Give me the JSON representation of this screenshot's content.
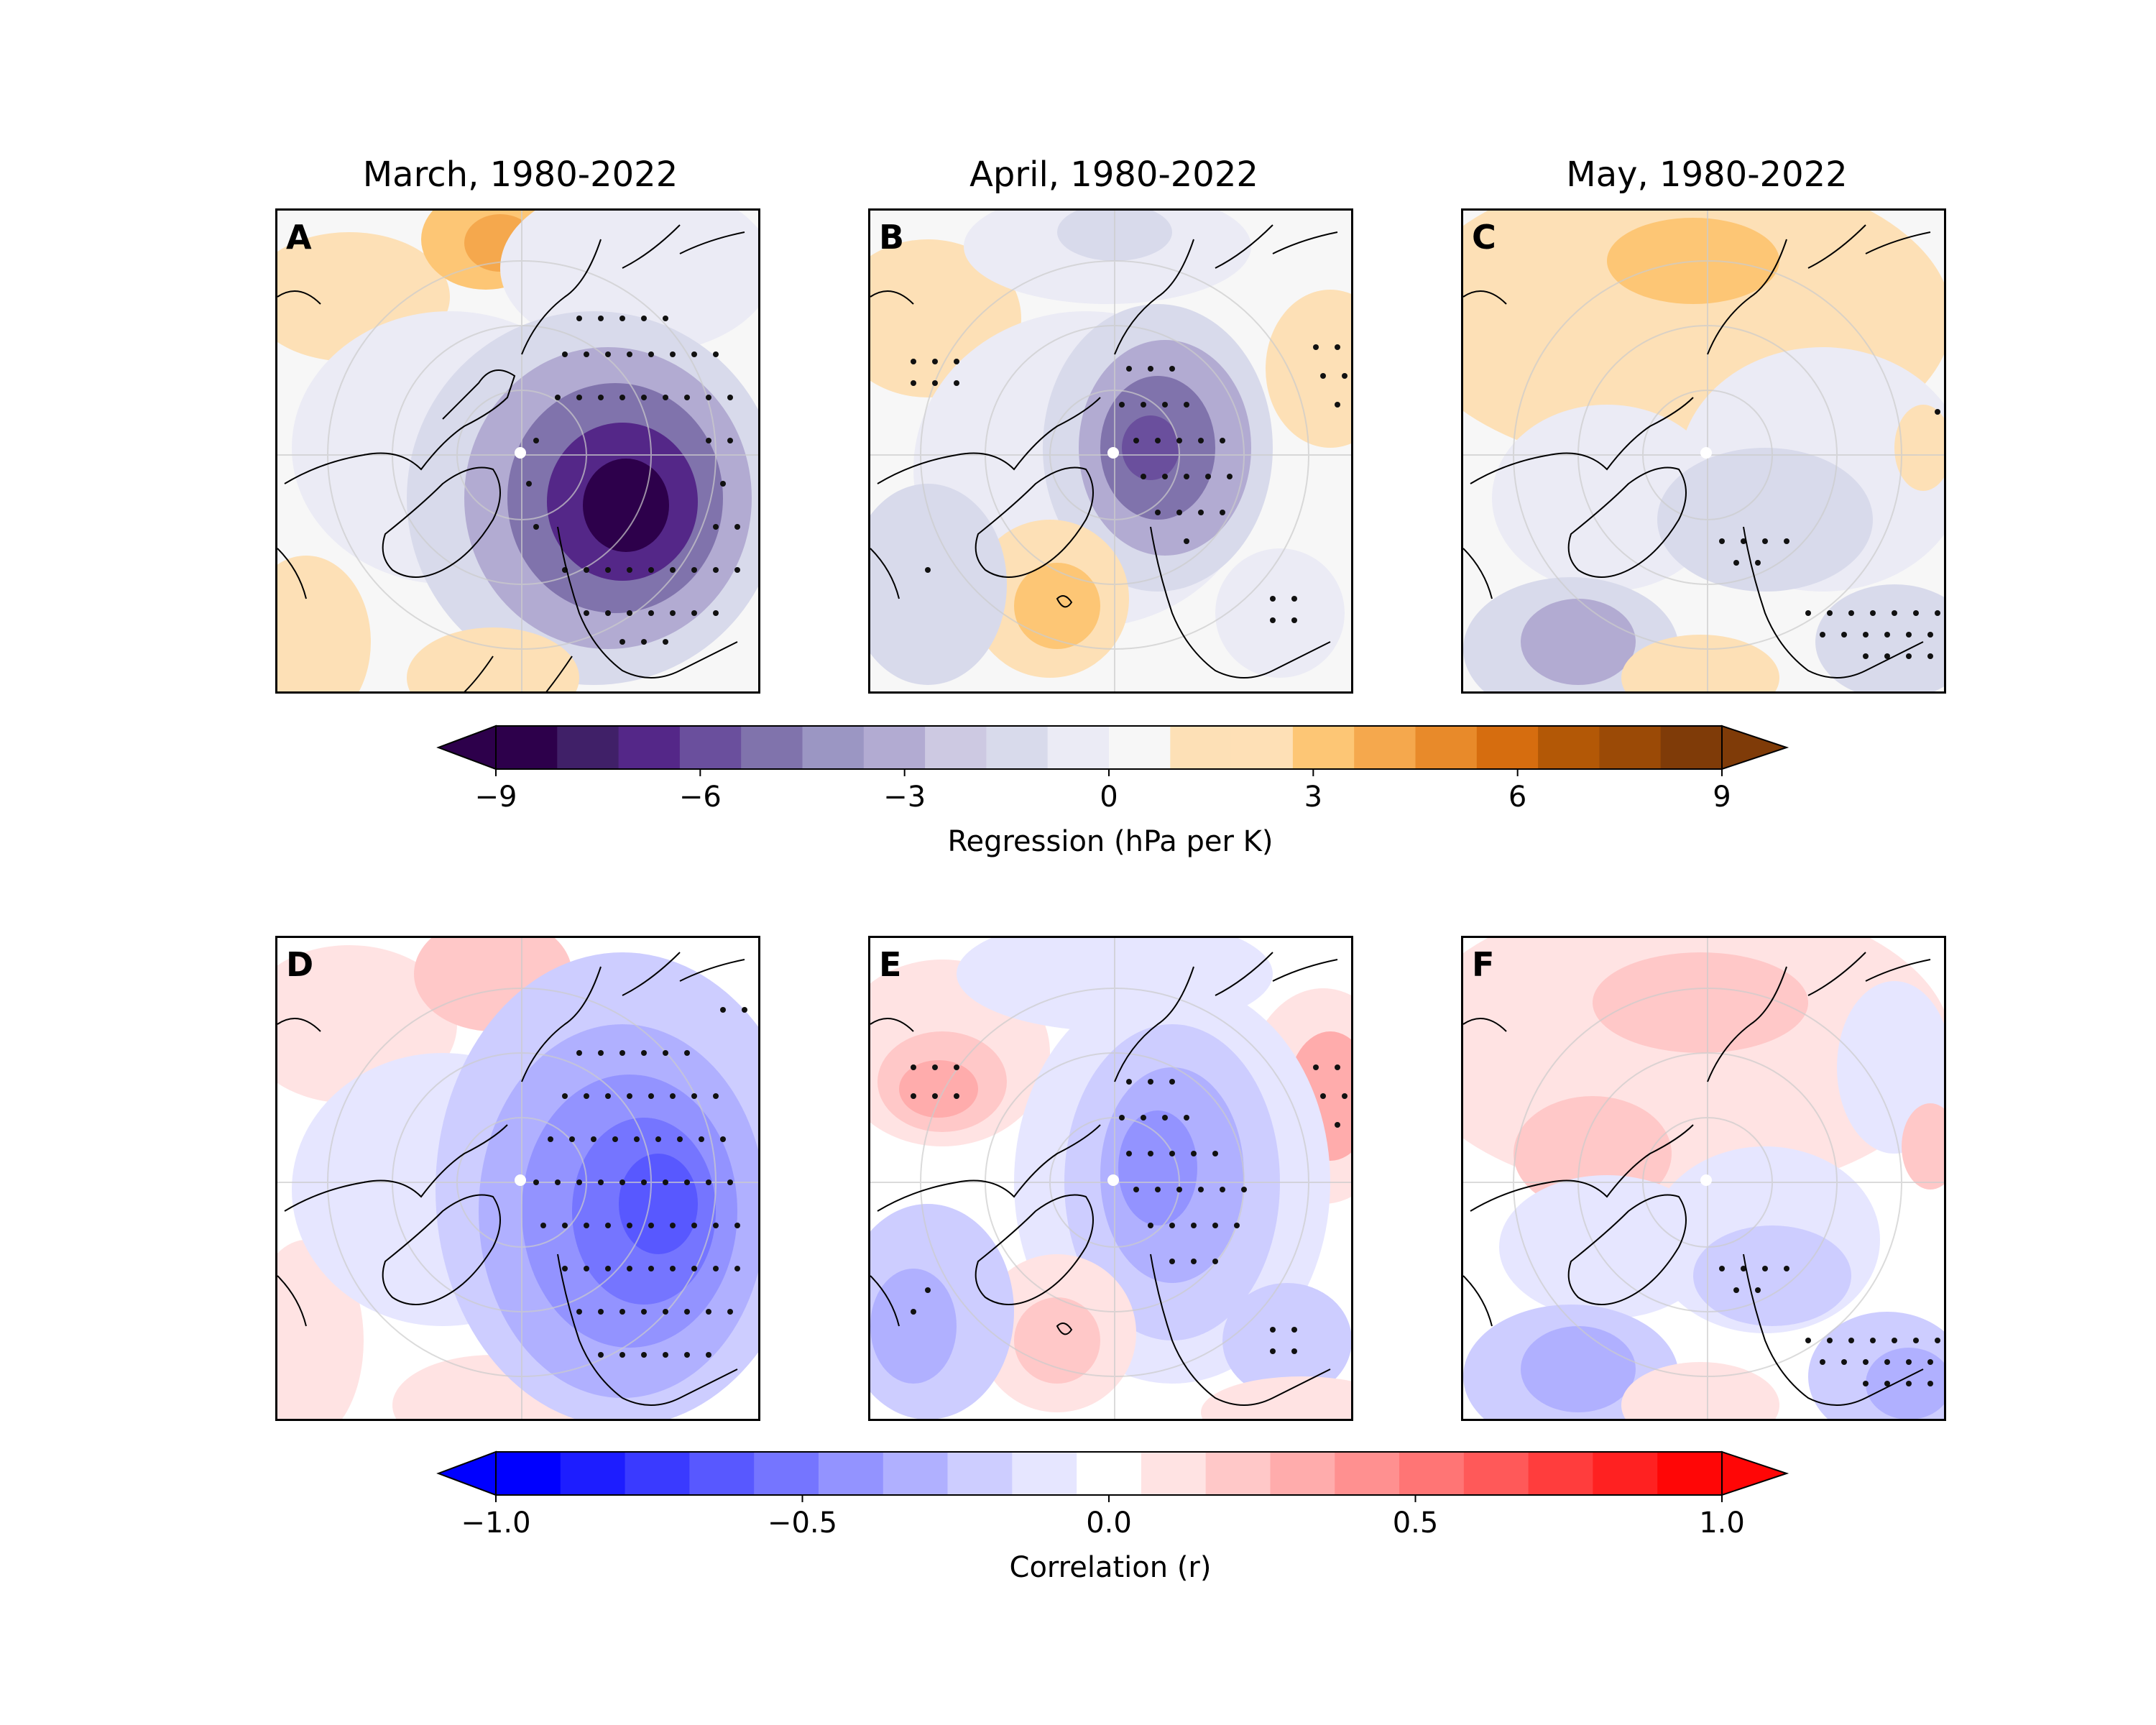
{
  "panels_top": [
    {
      "letter": "A",
      "title": "March, 1980-2022"
    },
    {
      "letter": "B",
      "title": "April, 1980-2022"
    },
    {
      "letter": "C",
      "title": "May, 1980-2022"
    }
  ],
  "panels_bottom": [
    {
      "letter": "D"
    },
    {
      "letter": "E"
    },
    {
      "letter": "F"
    }
  ],
  "chart_data": [
    {
      "type": "heatmap",
      "title": "Regression (hPa per K)",
      "colorbar": {
        "label": "Regression (hPa per K)",
        "ticks": [
          -9,
          -6,
          -3,
          0,
          3,
          6,
          9
        ],
        "tick_labels": [
          "−9",
          "−6",
          "−3",
          "0",
          "3",
          "6",
          "9"
        ],
        "range": [
          -9,
          9
        ],
        "extend": "both",
        "colors": [
          "#2d004b",
          "#402068",
          "#542788",
          "#6a4f9d",
          "#8073ac",
          "#9b96c3",
          "#b2abd2",
          "#cdc9e2",
          "#d8daeb",
          "#ebebf5",
          "#f7f7f7",
          "#fde0b6",
          "#fee0b6",
          "#fdc675",
          "#f5a84d",
          "#e88a2a",
          "#d66d0f",
          "#b35806",
          "#9b4a06",
          "#7f3b08"
        ]
      },
      "panels": [
        "A: March, 1980-2022",
        "B: April, 1980-2022",
        "C: May, 1980-2022"
      ]
    },
    {
      "type": "heatmap",
      "colorbar": {
        "label": "Correlation (r)",
        "ticks": [
          -1.0,
          -0.5,
          0.0,
          0.5,
          1.0
        ],
        "tick_labels": [
          "−1.0",
          "−0.5",
          "0.0",
          "0.5",
          "1.0"
        ],
        "range": [
          -1.0,
          1.0
        ],
        "extend": "both",
        "colors": [
          "#0000ff",
          "#1d1dff",
          "#3a3aff",
          "#5858ff",
          "#7575ff",
          "#9393ff",
          "#b0b0ff",
          "#cdcdff",
          "#e6e6ff",
          "#ffffff",
          "#ffe3e3",
          "#ffc8c8",
          "#ffacac",
          "#ff9090",
          "#ff7575",
          "#ff5959",
          "#ff3d3d",
          "#ff2121",
          "#ff0606"
        ]
      },
      "panels": [
        "D",
        "E",
        "F"
      ]
    }
  ]
}
